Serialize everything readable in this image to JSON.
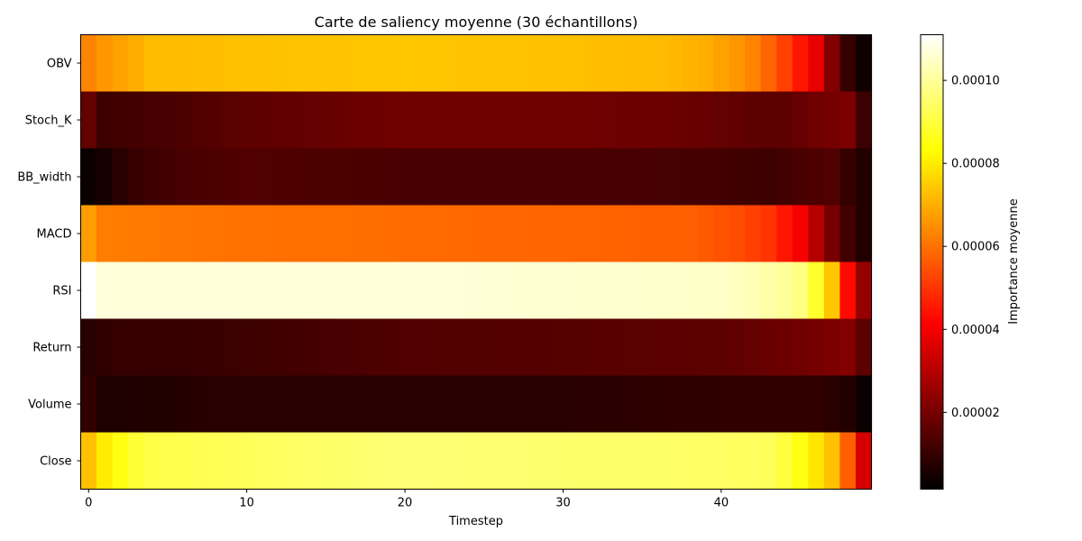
{
  "chart_data": {
    "type": "heatmap",
    "title": "Carte de saliency moyenne (30 échantillons)",
    "xlabel": "Timestep",
    "ylabel": "",
    "rows": [
      "OBV",
      "Stoch_K",
      "BB_width",
      "MACD",
      "RSI",
      "Return",
      "Volume",
      "Close"
    ],
    "x_range": [
      0,
      49
    ],
    "xticks": [
      0,
      10,
      20,
      30,
      40
    ],
    "colormap": "hot",
    "colorbar": {
      "label": "Importance moyenne",
      "vmin": 1.5e-06,
      "vmax": 0.000111,
      "ticks": [
        2e-05,
        4e-05,
        6e-05,
        8e-05,
        0.0001
      ],
      "tick_labels": [
        "0.00002",
        "0.00004",
        "0.00006",
        "0.00008",
        "0.00010"
      ]
    },
    "values_by_row": {
      "OBV": {
        "anchors": [
          [
            0,
            6.3e-05
          ],
          [
            1,
            6.6e-05
          ],
          [
            2,
            6.8e-05
          ],
          [
            4,
            7.2e-05
          ],
          [
            10,
            7.3e-05
          ],
          [
            20,
            7.4e-05
          ],
          [
            30,
            7.3e-05
          ],
          [
            36,
            7.2e-05
          ],
          [
            39,
            7e-05
          ],
          [
            41,
            6.6e-05
          ],
          [
            42,
            6.3e-05
          ],
          [
            43,
            5.8e-05
          ],
          [
            44,
            5.2e-05
          ],
          [
            45,
            4.5e-05
          ],
          [
            46,
            3.8e-05
          ],
          [
            47,
            2.2e-05
          ],
          [
            48,
            1e-05
          ],
          [
            49,
            4e-06
          ]
        ]
      },
      "Stoch_K": {
        "anchors": [
          [
            0,
            1.7e-05
          ],
          [
            1,
            1.1e-05
          ],
          [
            3,
            1.2e-05
          ],
          [
            5,
            1.3e-05
          ],
          [
            10,
            1.6e-05
          ],
          [
            20,
            1.9e-05
          ],
          [
            30,
            1.9e-05
          ],
          [
            38,
            1.8e-05
          ],
          [
            42,
            1.6e-05
          ],
          [
            44,
            1.6e-05
          ],
          [
            46,
            1.9e-05
          ],
          [
            48,
            2.1e-05
          ],
          [
            49,
            1.1e-05
          ]
        ]
      },
      "BB_width": {
        "anchors": [
          [
            0,
            3e-06
          ],
          [
            1,
            5e-06
          ],
          [
            2,
            8e-06
          ],
          [
            3,
            1e-05
          ],
          [
            6,
            1.3e-05
          ],
          [
            10,
            1.4e-05
          ],
          [
            20,
            1.3e-05
          ],
          [
            30,
            1.3e-05
          ],
          [
            40,
            1.2e-05
          ],
          [
            43,
            1.1e-05
          ],
          [
            45,
            1.3e-05
          ],
          [
            47,
            1.4e-05
          ],
          [
            48,
            1e-05
          ],
          [
            49,
            7e-06
          ]
        ]
      },
      "MACD": {
        "anchors": [
          [
            0,
            6.7e-05
          ],
          [
            1,
            6.2e-05
          ],
          [
            5,
            6.1e-05
          ],
          [
            10,
            6e-05
          ],
          [
            20,
            5.9e-05
          ],
          [
            30,
            5.8e-05
          ],
          [
            38,
            5.7e-05
          ],
          [
            41,
            5.4e-05
          ],
          [
            43,
            5e-05
          ],
          [
            44,
            4.5e-05
          ],
          [
            45,
            4e-05
          ],
          [
            46,
            3e-05
          ],
          [
            47,
            2e-05
          ],
          [
            48,
            1.2e-05
          ],
          [
            49,
            7e-06
          ]
        ]
      },
      "RSI": {
        "anchors": [
          [
            0,
            0.000111
          ],
          [
            1,
            0.000107
          ],
          [
            10,
            0.000107
          ],
          [
            20,
            0.000107
          ],
          [
            30,
            0.000106
          ],
          [
            40,
            0.000105
          ],
          [
            42,
            0.000103
          ],
          [
            44,
            0.0001
          ],
          [
            45,
            9.7e-05
          ],
          [
            46,
            8.8e-05
          ],
          [
            47,
            7.4e-05
          ],
          [
            48,
            4.3e-05
          ],
          [
            49,
            2.5e-05
          ]
        ]
      },
      "Return": {
        "anchors": [
          [
            0,
            8e-06
          ],
          [
            2,
            1e-05
          ],
          [
            6,
            1e-05
          ],
          [
            10,
            1.1e-05
          ],
          [
            20,
            1.4e-05
          ],
          [
            30,
            1.5e-05
          ],
          [
            40,
            1.6e-05
          ],
          [
            43,
            1.8e-05
          ],
          [
            45,
            1.9e-05
          ],
          [
            47,
            2.1e-05
          ],
          [
            48,
            2.2e-05
          ],
          [
            49,
            1.6e-05
          ]
        ]
      },
      "Volume": {
        "anchors": [
          [
            0,
            9e-06
          ],
          [
            1,
            6e-06
          ],
          [
            5,
            7e-06
          ],
          [
            10,
            8e-06
          ],
          [
            20,
            8e-06
          ],
          [
            30,
            8e-06
          ],
          [
            40,
            9e-06
          ],
          [
            46,
            9e-06
          ],
          [
            48,
            7e-06
          ],
          [
            49,
            3e-06
          ]
        ]
      },
      "Close": {
        "anchors": [
          [
            0,
            7.3e-05
          ],
          [
            1,
            8e-05
          ],
          [
            2,
            8.5e-05
          ],
          [
            3,
            8.9e-05
          ],
          [
            4,
            9.1e-05
          ],
          [
            10,
            9.3e-05
          ],
          [
            20,
            9.6e-05
          ],
          [
            30,
            9.5e-05
          ],
          [
            40,
            9.4e-05
          ],
          [
            43,
            9.3e-05
          ],
          [
            44,
            9e-05
          ],
          [
            45,
            8.5e-05
          ],
          [
            46,
            7.9e-05
          ],
          [
            47,
            7.3e-05
          ],
          [
            48,
            5.7e-05
          ],
          [
            49,
            3.5e-05
          ]
        ]
      }
    }
  }
}
